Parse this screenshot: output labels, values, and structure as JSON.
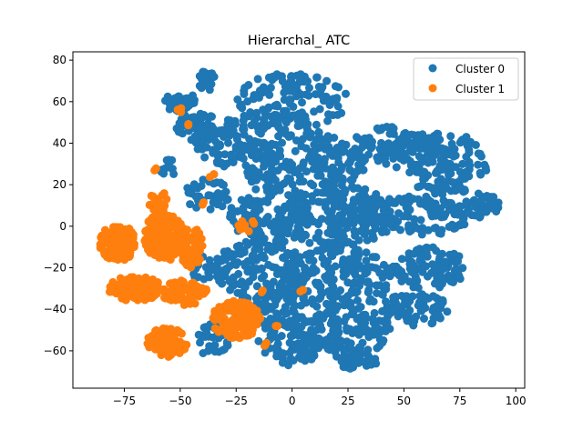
{
  "chart_data": {
    "type": "scatter",
    "title": "Hierarchal_ ATC",
    "xlabel": "",
    "ylabel": "",
    "xlim": [
      -98,
      104
    ],
    "ylim": [
      -78,
      84
    ],
    "xticks": [
      -75,
      -50,
      -25,
      0,
      25,
      50,
      75,
      100
    ],
    "xtick_labels": [
      "−75",
      "−50",
      "−25",
      "0",
      "25",
      "50",
      "75",
      "100"
    ],
    "yticks": [
      -60,
      -40,
      -20,
      0,
      20,
      40,
      60,
      80
    ],
    "ytick_labels": [
      "−60",
      "−40",
      "−20",
      "0",
      "20",
      "40",
      "60",
      "80"
    ],
    "grid": false,
    "legend_position": "top-right",
    "series": [
      {
        "name": "Cluster 0",
        "color": "#1f77b4",
        "clusters": [
          {
            "cx": 0,
            "cy": 60,
            "rx": 25,
            "ry": 14,
            "n": 150
          },
          {
            "cx": -50,
            "cy": 60,
            "rx": 7,
            "ry": 5,
            "n": 40
          },
          {
            "cx": -42,
            "cy": 48,
            "rx": 10,
            "ry": 7,
            "n": 60
          },
          {
            "cx": -38,
            "cy": 70,
            "rx": 4,
            "ry": 5,
            "n": 20
          },
          {
            "cx": -25,
            "cy": 40,
            "rx": 18,
            "ry": 12,
            "n": 100
          },
          {
            "cx": 5,
            "cy": 30,
            "rx": 28,
            "ry": 16,
            "n": 200
          },
          {
            "cx": 45,
            "cy": 38,
            "rx": 20,
            "ry": 10,
            "n": 110
          },
          {
            "cx": 68,
            "cy": 30,
            "rx": 20,
            "ry": 15,
            "n": 150
          },
          {
            "cx": 85,
            "cy": 10,
            "rx": 8,
            "ry": 6,
            "n": 40
          },
          {
            "cx": 55,
            "cy": 5,
            "rx": 25,
            "ry": 10,
            "n": 130
          },
          {
            "cx": 20,
            "cy": 5,
            "rx": 25,
            "ry": 15,
            "n": 200
          },
          {
            "cx": -10,
            "cy": 5,
            "rx": 18,
            "ry": 14,
            "n": 130
          },
          {
            "cx": -38,
            "cy": 15,
            "rx": 10,
            "ry": 8,
            "n": 40
          },
          {
            "cx": -55,
            "cy": 28,
            "rx": 4,
            "ry": 4,
            "n": 12
          },
          {
            "cx": -15,
            "cy": -20,
            "rx": 20,
            "ry": 14,
            "n": 140
          },
          {
            "cx": 20,
            "cy": -25,
            "rx": 25,
            "ry": 15,
            "n": 180
          },
          {
            "cx": 60,
            "cy": -20,
            "rx": 18,
            "ry": 10,
            "n": 100
          },
          {
            "cx": 55,
            "cy": -40,
            "rx": 15,
            "ry": 8,
            "n": 70
          },
          {
            "cx": 25,
            "cy": -50,
            "rx": 20,
            "ry": 12,
            "n": 130
          },
          {
            "cx": 0,
            "cy": -55,
            "rx": 15,
            "ry": 12,
            "n": 100
          },
          {
            "cx": 28,
            "cy": -65,
            "rx": 10,
            "ry": 4,
            "n": 40
          },
          {
            "cx": -10,
            "cy": -40,
            "rx": 15,
            "ry": 10,
            "n": 80
          },
          {
            "cx": -35,
            "cy": -55,
            "rx": 8,
            "ry": 8,
            "n": 30
          },
          {
            "cx": -40,
            "cy": -20,
            "rx": 6,
            "ry": 6,
            "n": 20
          }
        ]
      },
      {
        "name": "Cluster 1",
        "color": "#ff7f0e",
        "clusters": [
          {
            "cx": -78,
            "cy": -8,
            "rx": 8,
            "ry": 9,
            "n": 120
          },
          {
            "cx": -57,
            "cy": -5,
            "rx": 9,
            "ry": 12,
            "n": 160
          },
          {
            "cx": -45,
            "cy": -10,
            "rx": 5,
            "ry": 10,
            "n": 70
          },
          {
            "cx": -70,
            "cy": -30,
            "rx": 12,
            "ry": 6,
            "n": 120
          },
          {
            "cx": -48,
            "cy": -32,
            "rx": 10,
            "ry": 6,
            "n": 80
          },
          {
            "cx": -56,
            "cy": -56,
            "rx": 9,
            "ry": 7,
            "n": 120
          },
          {
            "cx": -25,
            "cy": -45,
            "rx": 11,
            "ry": 9,
            "n": 130
          },
          {
            "cx": -60,
            "cy": 12,
            "rx": 4,
            "ry": 6,
            "n": 24
          },
          {
            "cx": -20,
            "cy": 0,
            "rx": 4,
            "ry": 3,
            "n": 12
          },
          {
            "cx": -50,
            "cy": 56,
            "rx": 1.5,
            "ry": 1.5,
            "n": 3
          },
          {
            "cx": -47,
            "cy": 49,
            "rx": 1,
            "ry": 1,
            "n": 2
          },
          {
            "cx": -36,
            "cy": 24,
            "rx": 1.5,
            "ry": 1.5,
            "n": 3
          },
          {
            "cx": -61,
            "cy": 27,
            "rx": 1,
            "ry": 1,
            "n": 2
          },
          {
            "cx": -40,
            "cy": 11,
            "rx": 1,
            "ry": 1,
            "n": 2
          },
          {
            "cx": 4,
            "cy": -31,
            "rx": 1,
            "ry": 1,
            "n": 2
          },
          {
            "cx": -13,
            "cy": -31,
            "rx": 1,
            "ry": 1,
            "n": 2
          },
          {
            "cx": -7,
            "cy": -48,
            "rx": 1,
            "ry": 1,
            "n": 2
          },
          {
            "cx": -12,
            "cy": -57,
            "rx": 1,
            "ry": 1,
            "n": 2
          }
        ]
      }
    ]
  }
}
